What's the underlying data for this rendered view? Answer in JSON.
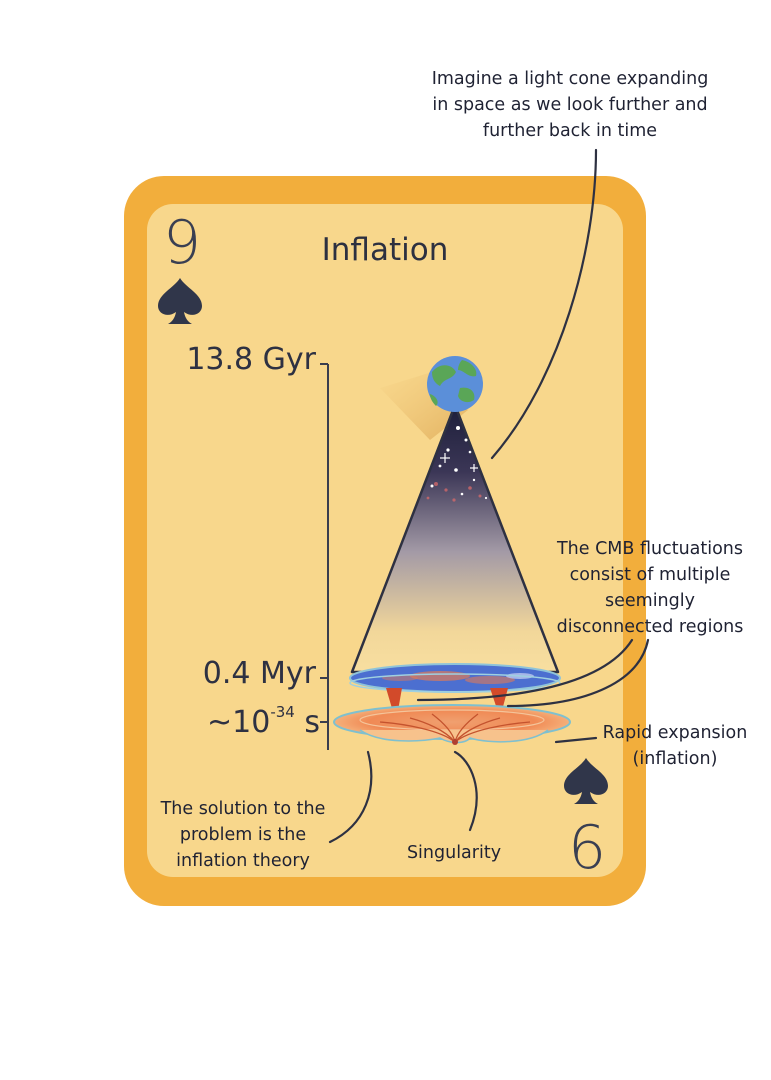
{
  "card": {
    "title": "Inflation",
    "rank_top": "9",
    "rank_bottom": "6",
    "suit_icon": "spade-icon",
    "colors": {
      "border": "#f2ae3c",
      "face": "#f8d78c",
      "ink": "#2f3345"
    }
  },
  "timeline": {
    "top_label": "13.8 Gyr",
    "mid_label": "0.4 Myr",
    "bottom_label_prefix": "~10",
    "bottom_label_exponent": "-34",
    "bottom_label_unit": "s"
  },
  "annotations": {
    "light_cone": [
      "Imagine a light cone expanding",
      "in space as we look further and",
      "further back in time"
    ],
    "cmb": [
      "The CMB fluctuations",
      "consist of  multiple",
      "seemingly",
      "disconnected regions"
    ],
    "rapid_expansion": [
      "Rapid expansion",
      "(inflation)"
    ],
    "solution": [
      "The solution to the",
      "problem is the",
      "inflation theory"
    ],
    "singularity": "Singularity"
  }
}
